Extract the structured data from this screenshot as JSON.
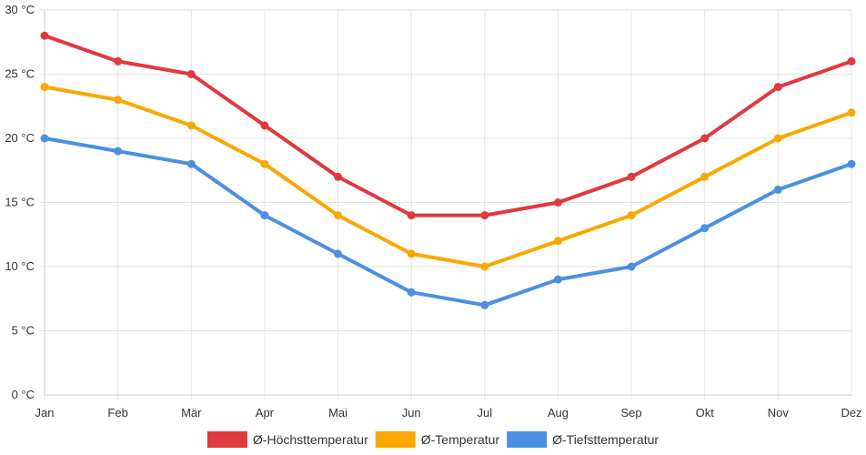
{
  "chart_data": {
    "type": "line",
    "categories": [
      "Jan",
      "Feb",
      "Mär",
      "Apr",
      "Mai",
      "Jun",
      "Jul",
      "Aug",
      "Sep",
      "Okt",
      "Nov",
      "Dez"
    ],
    "y_ticks": [
      "0 °C",
      "5 °C",
      "10 °C",
      "15 °C",
      "20 °C",
      "25 °C",
      "30 °C"
    ],
    "ylim": [
      0,
      30
    ],
    "grid": true,
    "legend_position": "bottom",
    "series": [
      {
        "name": "Ø-Höchsttemperatur",
        "color": "#e0393e",
        "values": [
          28,
          26,
          25,
          21,
          17,
          14,
          14,
          15,
          17,
          20,
          24,
          26
        ]
      },
      {
        "name": "Ø-Temperatur",
        "color": "#f9a800",
        "values": [
          24,
          23,
          21,
          18,
          14,
          11,
          10,
          12,
          14,
          17,
          20,
          22
        ]
      },
      {
        "name": "Ø-Tiefsttemperatur",
        "color": "#4a90e2",
        "values": [
          20,
          19,
          18,
          14,
          11,
          8,
          7,
          9,
          10,
          13,
          16,
          18
        ]
      }
    ]
  }
}
